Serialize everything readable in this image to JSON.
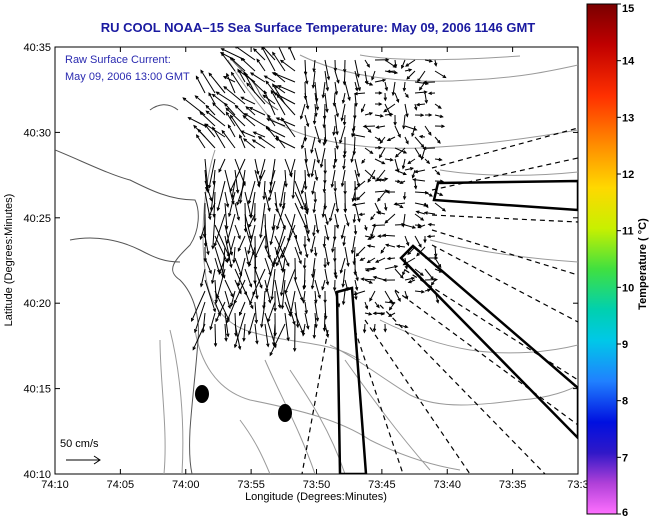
{
  "title": "RU COOL  NOAA–15  Sea Surface Temperature:  May 09, 2006 1146 GMT",
  "map": {
    "xlabel": "Longitude (Degrees:Minutes)",
    "ylabel": "Latitude (Degrees:Minutes)",
    "x_ticks": [
      "74:10",
      "74:05",
      "74:00",
      "73:55",
      "73:50",
      "73:45",
      "73:40",
      "73:35",
      "73:3"
    ],
    "y_ticks": [
      "40:35",
      "40:30",
      "40:25",
      "40:20",
      "40:15",
      "40:10"
    ],
    "annotation_line1": "Raw Surface Current:",
    "annotation_line2": "May 09, 2006 13:00 GMT",
    "scale_label": "50 cm/s"
  },
  "colorbar": {
    "label": "Temperature ( °C)",
    "ticks": [
      "15",
      "14",
      "13",
      "12",
      "11",
      "10",
      "9",
      "8",
      "7",
      "6"
    ],
    "range": [
      6,
      15
    ],
    "colors": [
      "#8b0000",
      "#e0201a",
      "#ff8a00",
      "#e8e800",
      "#38d838",
      "#00c8c8",
      "#2060ff",
      "#0000c0",
      "#8a30c8",
      "#ff40ff"
    ]
  }
}
